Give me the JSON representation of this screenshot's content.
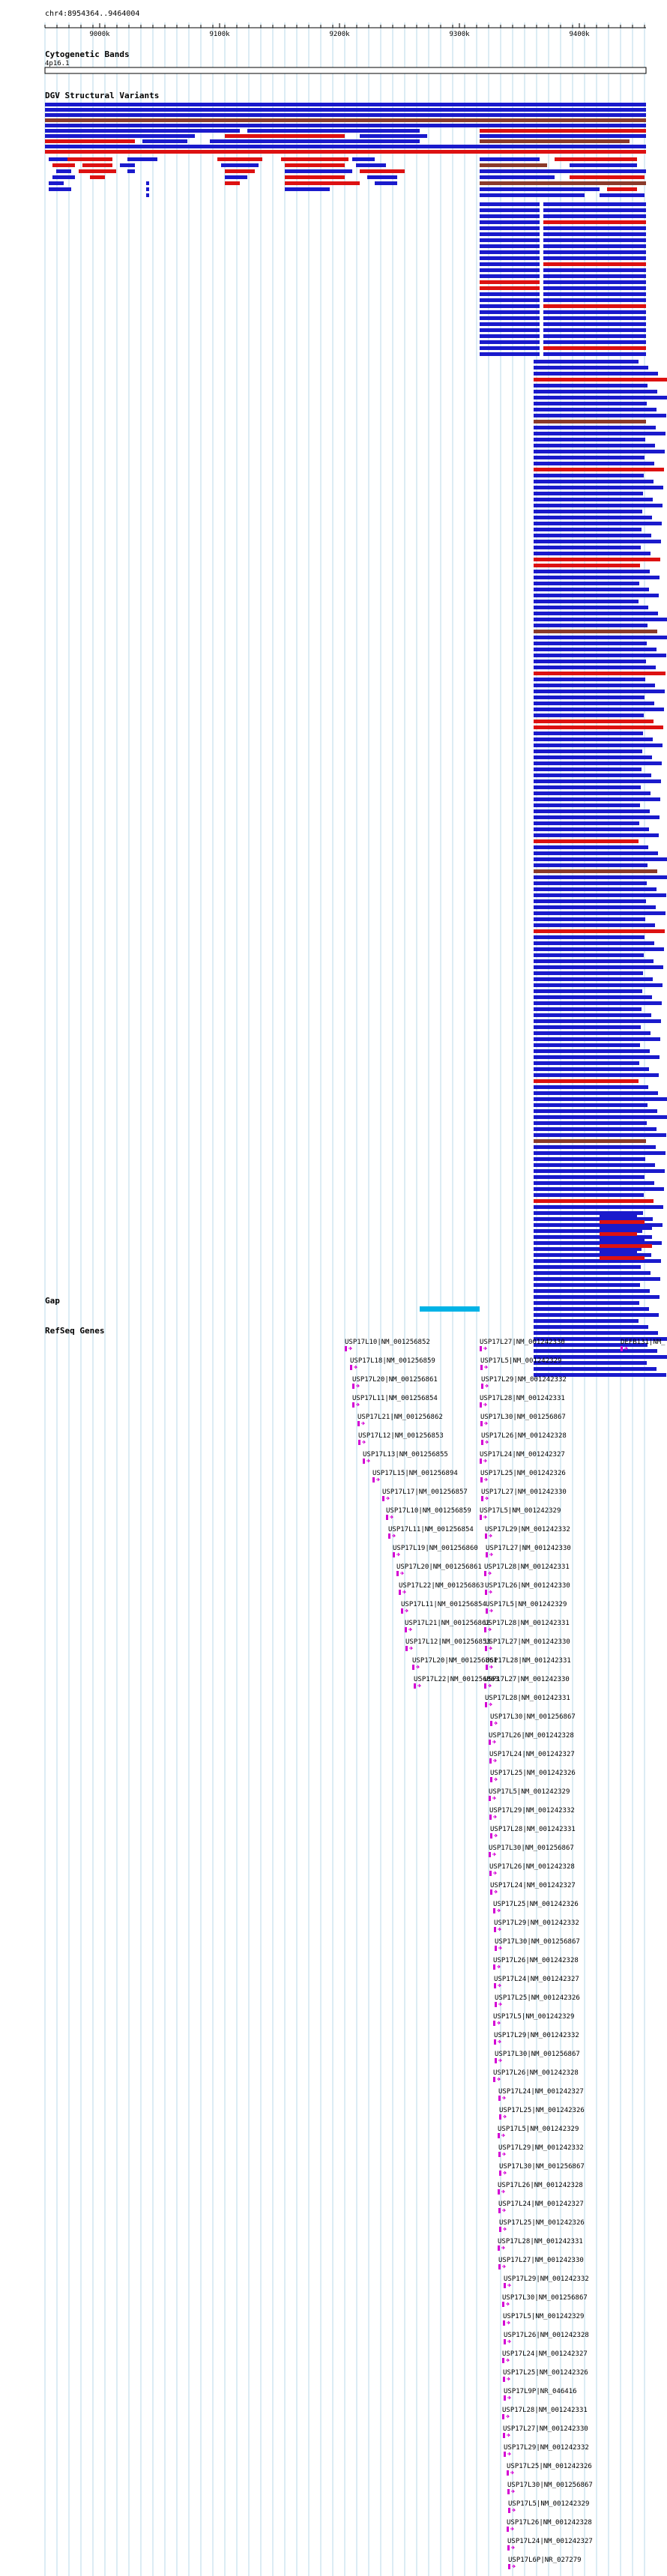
{
  "header": {
    "location": "chr4:8954364..9464004"
  },
  "ruler": {
    "ticks": [
      "9000k",
      "9100k",
      "9200k",
      "9300k",
      "9400k"
    ]
  },
  "tracks": {
    "cytoband": {
      "title": "Cytogenetic Bands",
      "band_label": "4p16.1"
    },
    "dgv": {
      "title": "DGV Structural Variants"
    },
    "gap": {
      "title": "Gap"
    },
    "refseq": {
      "title": "RefSeq Genes"
    }
  },
  "colors": {
    "gain": "#1a1acc",
    "loss": "#dd1111",
    "both": "#8b3a2a",
    "gap": "#00b3e6",
    "gene": "#d400d4",
    "grid": "#b8d8e8"
  },
  "genes_left": [
    "USP17L10|NM_001256852",
    "USP17L18|NM_001256859",
    "USP17L20|NM_001256861",
    "USP17L11|NM_001256854",
    "USP17L21|NM_001256862",
    "USP17L12|NM_001256853",
    "USP17L13|NM_001256855",
    "USP17L15|NM_001256894",
    "USP17L17|NM_001256857",
    "USP17L10|NM_001256859",
    "USP17L11|NM_001256854",
    "USP17L19|NM_001256860",
    "USP17L20|NM_001256861",
    "USP17L22|NM_001256863",
    "USP17L11|NM_001256854",
    "USP17L21|NM_001256862",
    "USP17L12|NM_001256853",
    "USP17L20|NM_001256861",
    "USP17L22|NM_001256863"
  ],
  "genes_right": [
    "USP17L27|NM_001242330",
    "USP17L5|NM_001242329",
    "USP17L29|NM_001242332",
    "USP17L28|NM_001242331",
    "USP17L30|NM_001256867",
    "USP17L26|NM_001242328",
    "USP17L24|NM_001242327",
    "USP17L25|NM_001242326",
    "USP17L27|NM_001242330",
    "USP17L5|NM_001242329",
    "USP17L29|NM_001242332",
    "USP17L27|NM_001242330",
    "USP17L28|NM_001242331",
    "USP17L26|NM_001242330",
    "USP17L5|NM_001242329",
    "USP17L28|NM_001242331",
    "USP17L27|NM_001242330",
    "USP17L28|NM_001242331",
    "USP17L27|NM_001242330",
    "USP17L28|NM_001242331",
    "USP17L30|NM_001256867",
    "USP17L26|NM_001242328",
    "USP17L24|NM_001242327",
    "USP17L25|NM_001242326",
    "USP17L5|NM_001242329",
    "USP17L29|NM_001242332",
    "USP17L28|NM_001242331",
    "USP17L30|NM_001256867",
    "USP17L26|NM_001242328",
    "USP17L24|NM_001242327",
    "USP17L25|NM_001242326",
    "USP17L29|NM_001242332",
    "USP17L30|NM_001256867",
    "USP17L26|NM_001242328",
    "USP17L24|NM_001242327",
    "USP17L25|NM_001242326",
    "USP17L5|NM_001242329",
    "USP17L29|NM_001242332",
    "USP17L30|NM_001256867",
    "USP17L26|NM_001242328",
    "USP17L24|NM_001242327",
    "USP17L25|NM_001242326",
    "USP17L5|NM_001242329",
    "USP17L29|NM_001242332",
    "USP17L30|NM_001256867",
    "USP17L26|NM_001242328",
    "USP17L24|NM_001242327",
    "USP17L25|NM_001242326",
    "USP17L28|NM_001242331",
    "USP17L27|NM_001242330",
    "USP17L29|NM_001242332",
    "USP17L30|NM_001256867",
    "USP17L5|NM_001242329",
    "USP17L26|NM_001242328",
    "USP17L24|NM_001242327",
    "USP17L25|NM_001242326",
    "USP17L9P|NR_046416",
    "USP17L28|NM_001242331",
    "USP17L27|NM_001242330",
    "USP17L29|NM_001242332",
    "USP17L25|NM_001242326",
    "USP17L30|NM_001256867",
    "USP17L5|NM_001242329",
    "USP17L26|NM_001242328",
    "USP17L24|NM_001242327",
    "USP17L6P|NR_027279"
  ],
  "genes_far": [
    "DEFB131|NM_"
  ]
}
